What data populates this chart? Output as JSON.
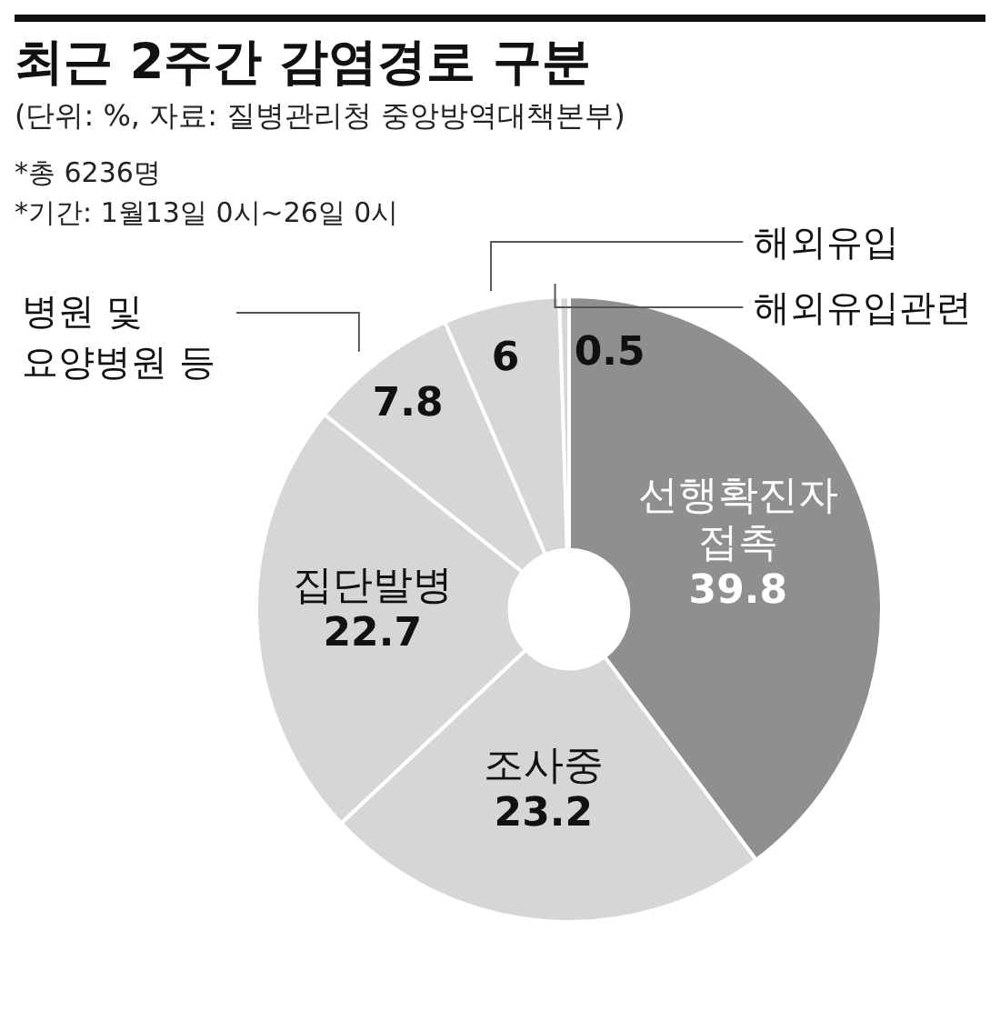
{
  "chart_data": {
    "type": "donut",
    "title": "최근 2주간 감염경로 구분",
    "subtitle": "(단위: %, 자료: 질병관리청 중앙방역대책본부)",
    "annotations": [
      "*총 6236명",
      "*기간: 1월13일 0시~26일 0시"
    ],
    "categories": [
      "선행확진자 접촉",
      "조사중",
      "집단발병",
      "병원 및 요양병원 등",
      "해외유입",
      "해외유입관련"
    ],
    "values": [
      39.8,
      23.2,
      22.7,
      7.8,
      6,
      0.5
    ],
    "colors": [
      "#8f8f8f",
      "#d6d6d6",
      "#d6d6d6",
      "#d6d6d6",
      "#d6d6d6",
      "#d6d6d6"
    ],
    "data_labels": true
  }
}
